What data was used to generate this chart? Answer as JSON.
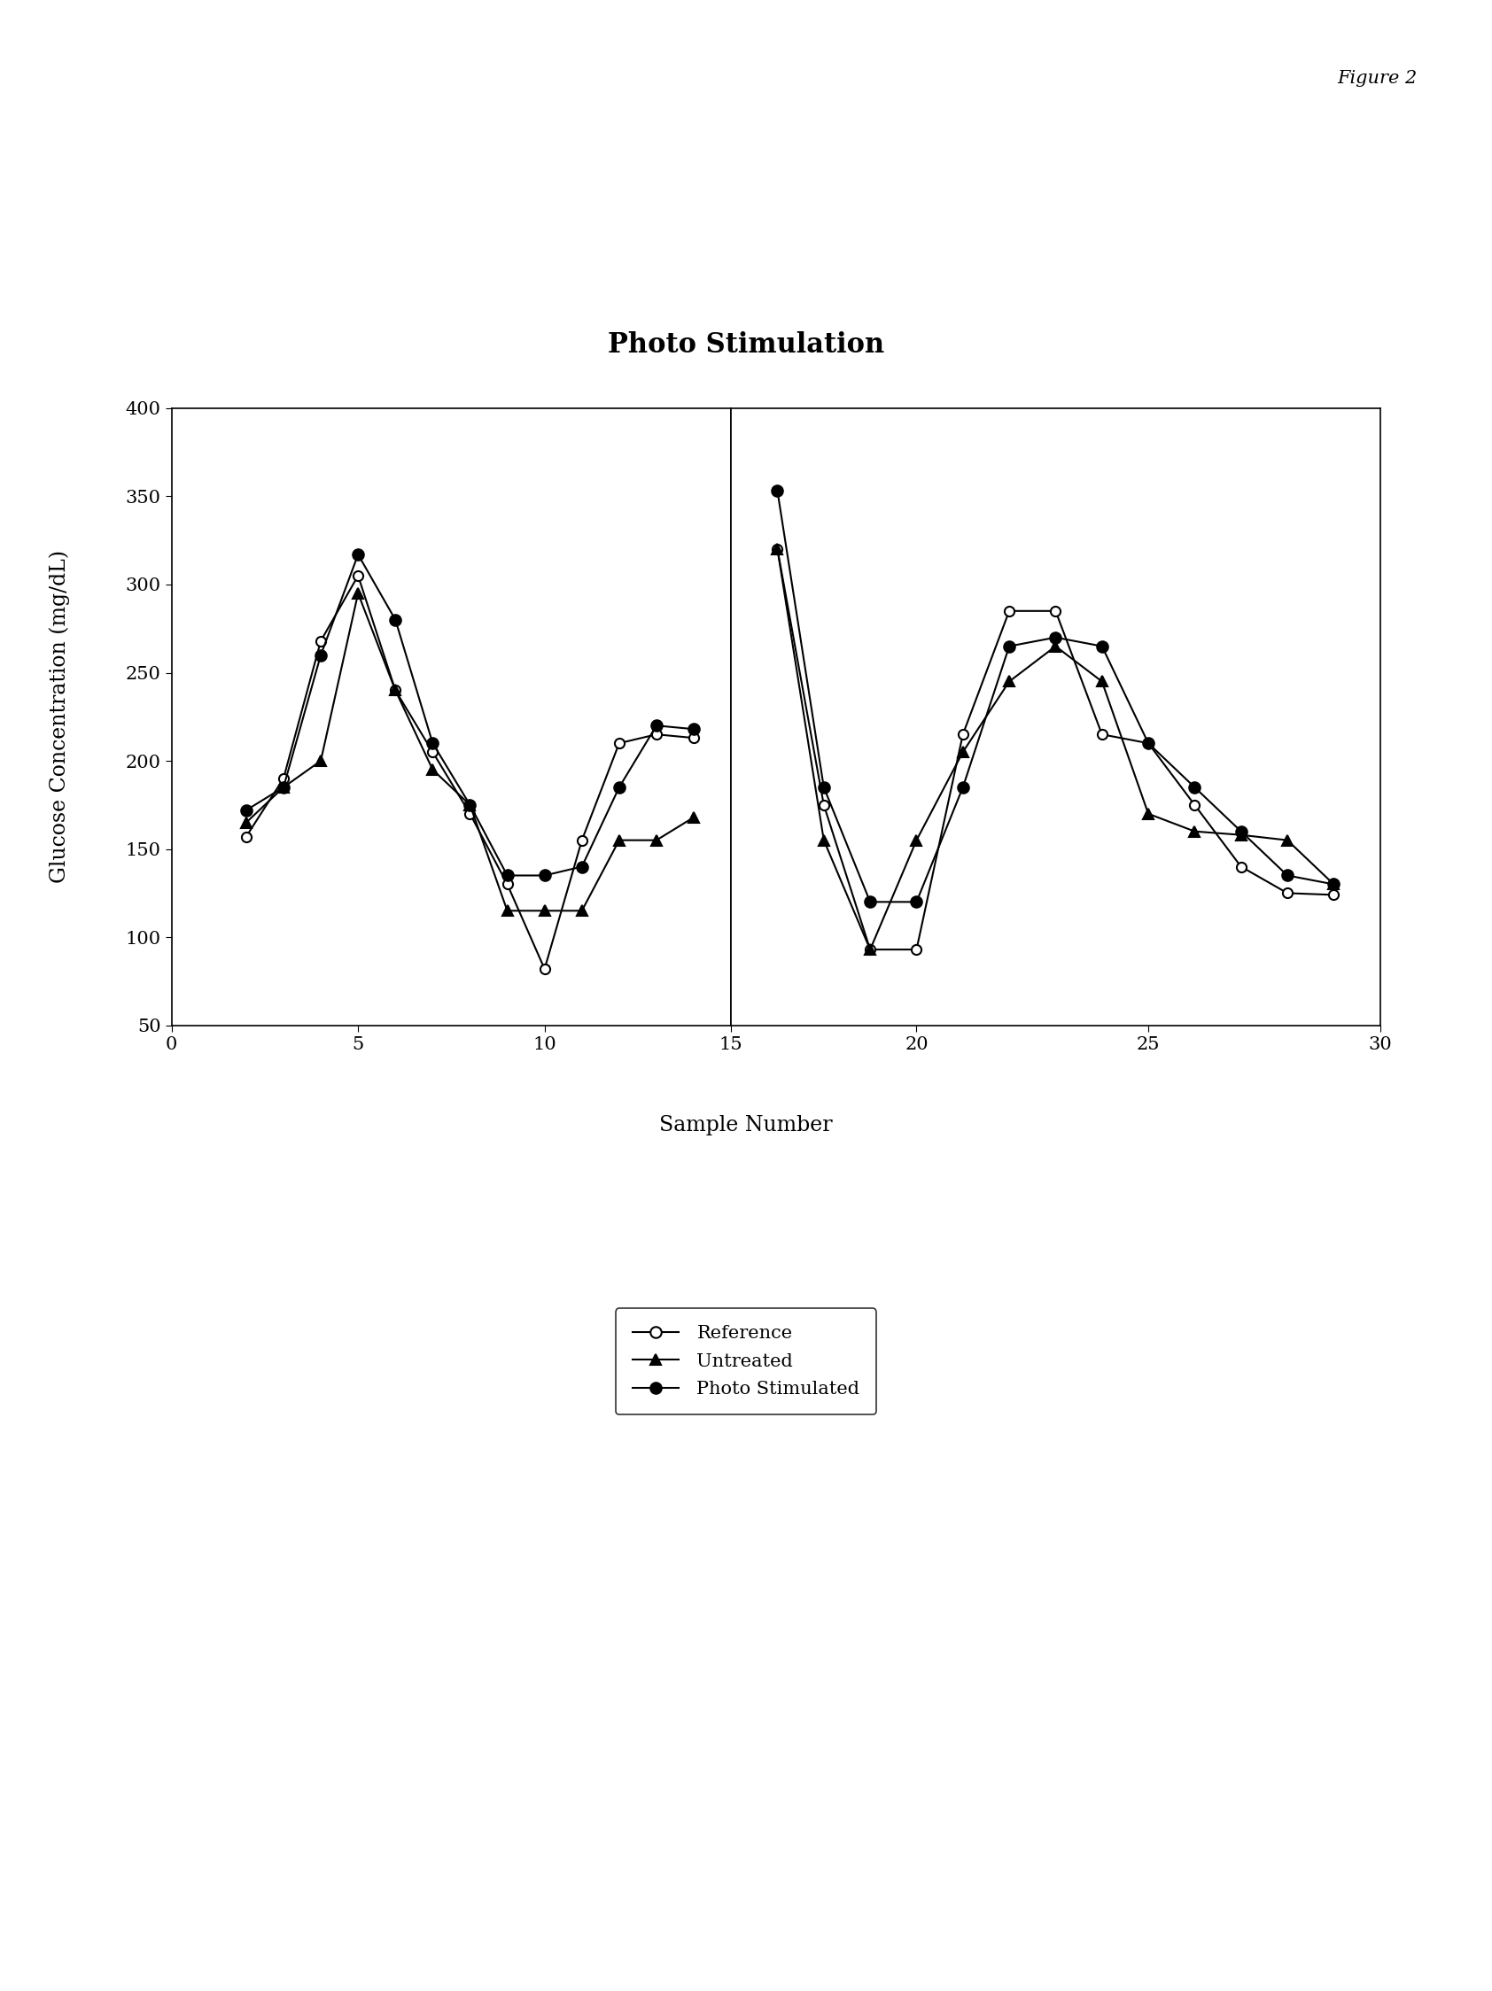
{
  "title": "Photo Stimulation",
  "xlabel": "Sample Number",
  "ylabel": "Glucose Concentration (mg/dL)",
  "figure_label": "Figure 2",
  "ylim": [
    50,
    400
  ],
  "yticks": [
    50,
    100,
    150,
    200,
    250,
    300,
    350,
    400
  ],
  "xticks_left": [
    0,
    5,
    10,
    15
  ],
  "xticks_right": [
    20,
    25,
    30
  ],
  "reference_x": [
    2,
    3,
    4,
    5,
    6,
    7,
    8,
    9,
    10,
    11,
    12,
    13,
    14
  ],
  "reference_y": [
    157,
    190,
    268,
    305,
    240,
    205,
    170,
    130,
    82,
    155,
    210,
    215,
    213
  ],
  "untreated_x": [
    2,
    3,
    4,
    5,
    6,
    7,
    8,
    9,
    10,
    11,
    12,
    13,
    14
  ],
  "untreated_y": [
    165,
    185,
    200,
    295,
    240,
    195,
    175,
    115,
    115,
    115,
    155,
    155,
    168
  ],
  "photostim_x": [
    2,
    3,
    4,
    5,
    6,
    7,
    8,
    9,
    10,
    11,
    12,
    13,
    14
  ],
  "photostim_y": [
    172,
    185,
    260,
    317,
    280,
    210,
    175,
    135,
    135,
    140,
    185,
    220,
    218
  ],
  "reference_x2": [
    17,
    18,
    19,
    20,
    21,
    22,
    23,
    24,
    25,
    26,
    27,
    28,
    29
  ],
  "reference_y2": [
    320,
    175,
    93,
    93,
    215,
    285,
    285,
    215,
    210,
    175,
    140,
    125,
    124
  ],
  "untreated_x2": [
    17,
    18,
    19,
    20,
    21,
    22,
    23,
    24,
    25,
    26,
    27,
    28,
    29
  ],
  "untreated_y2": [
    320,
    155,
    93,
    155,
    205,
    245,
    265,
    245,
    170,
    160,
    158,
    155,
    130
  ],
  "photostim_x2": [
    17,
    18,
    19,
    20,
    21,
    22,
    23,
    24,
    25,
    26,
    27,
    28,
    29
  ],
  "photostim_y2": [
    353,
    185,
    120,
    120,
    185,
    265,
    270,
    265,
    210,
    185,
    160,
    135,
    130
  ],
  "line_color": "#000000",
  "background_color": "#ffffff",
  "legend_labels": [
    "Reference",
    "Untreated",
    "Photo Stimulated"
  ],
  "title_fontsize": 22,
  "label_fontsize": 17,
  "tick_fontsize": 15,
  "legend_fontsize": 15,
  "figure_label_fontsize": 15
}
